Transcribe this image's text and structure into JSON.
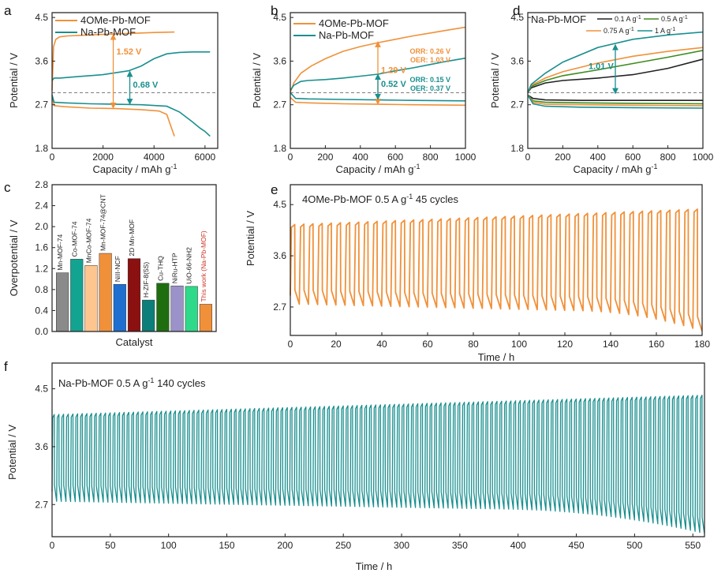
{
  "colors": {
    "orange": "#f0913a",
    "teal": "#1a8f8f",
    "black": "#222222",
    "green": "#3d8b1f",
    "light_orange": "#ffc58f",
    "red": "#cc3322"
  },
  "chart_data": [
    {
      "panel": "a",
      "type": "line",
      "xlabel": "Capacity / mAh g-1",
      "ylabel": "Potential / V",
      "xlim": [
        0,
        6500
      ],
      "ylim": [
        1.8,
        4.6
      ],
      "xticks": [
        0,
        2000,
        4000,
        6000
      ],
      "yticks": [
        1.8,
        2.7,
        3.6,
        4.5
      ],
      "ref_line": 2.95,
      "legend": [
        "4OMe-Pb-MOF",
        "Na-Pb-MOF"
      ],
      "series": [
        {
          "name": "4OMe-Pb-MOF charge",
          "color": "orange",
          "x": [
            0,
            60,
            150,
            300,
            600,
            1000,
            2000,
            3000,
            4000,
            4800
          ],
          "y": [
            3.0,
            3.9,
            4.05,
            4.1,
            4.12,
            4.13,
            4.15,
            4.17,
            4.19,
            4.2
          ]
        },
        {
          "name": "4OMe-Pb-MOF discharge",
          "color": "orange",
          "x": [
            0,
            80,
            500,
            1500,
            2500,
            3500,
            4200,
            4500,
            4700,
            4800
          ],
          "y": [
            2.9,
            2.68,
            2.66,
            2.63,
            2.62,
            2.6,
            2.57,
            2.5,
            2.2,
            2.05
          ]
        },
        {
          "name": "Na-Pb-MOF charge",
          "color": "teal",
          "x": [
            0,
            80,
            300,
            1000,
            2000,
            3000,
            3500,
            4000,
            4500,
            5000,
            5500,
            6200
          ],
          "y": [
            3.2,
            3.25,
            3.25,
            3.28,
            3.32,
            3.4,
            3.5,
            3.65,
            3.75,
            3.78,
            3.79,
            3.79
          ]
        },
        {
          "name": "Na-Pb-MOF discharge",
          "color": "teal",
          "x": [
            0,
            80,
            500,
            1500,
            2500,
            3500,
            4500,
            5000,
            5500,
            5800,
            6000,
            6200
          ],
          "y": [
            2.9,
            2.75,
            2.74,
            2.72,
            2.71,
            2.7,
            2.67,
            2.55,
            2.35,
            2.22,
            2.15,
            2.05
          ]
        }
      ],
      "annotations": [
        {
          "text": "1.52 V",
          "color": "orange",
          "x": 2400,
          "y1": 2.63,
          "y2": 4.15
        },
        {
          "text": "0.68 V",
          "color": "teal",
          "x": 3050,
          "y1": 2.71,
          "y2": 3.39
        }
      ]
    },
    {
      "panel": "b",
      "type": "line",
      "xlabel": "Capacity / mAh g-1",
      "ylabel": "Potential / V",
      "xlim": [
        0,
        1000
      ],
      "ylim": [
        1.8,
        4.6
      ],
      "xticks": [
        0,
        200,
        400,
        600,
        800,
        1000
      ],
      "yticks": [
        1.8,
        2.7,
        3.6,
        4.5
      ],
      "ref_line": 2.95,
      "legend": [
        "4OMe-Pb-MOF",
        "Na-Pb-MOF"
      ],
      "series": [
        {
          "name": "4OMe-Pb-MOF charge",
          "color": "orange",
          "x": [
            0,
            20,
            60,
            120,
            200,
            300,
            400,
            500,
            600,
            700,
            800,
            900,
            1000
          ],
          "y": [
            2.95,
            3.15,
            3.35,
            3.5,
            3.65,
            3.8,
            3.9,
            3.98,
            4.05,
            4.12,
            4.18,
            4.24,
            4.3
          ]
        },
        {
          "name": "4OMe-Pb-MOF discharge",
          "color": "orange",
          "x": [
            0,
            30,
            100,
            300,
            500,
            700,
            1000
          ],
          "y": [
            2.85,
            2.75,
            2.74,
            2.72,
            2.71,
            2.7,
            2.69
          ]
        },
        {
          "name": "Na-Pb-MOF charge",
          "color": "teal",
          "x": [
            0,
            20,
            60,
            100,
            200,
            300,
            400,
            500,
            600,
            700,
            800,
            900,
            1000
          ],
          "y": [
            3.0,
            3.1,
            3.18,
            3.2,
            3.22,
            3.25,
            3.29,
            3.33,
            3.4,
            3.46,
            3.53,
            3.6,
            3.66
          ]
        },
        {
          "name": "Na-Pb-MOF discharge",
          "color": "teal",
          "x": [
            0,
            30,
            100,
            300,
            500,
            700,
            1000
          ],
          "y": [
            2.95,
            2.83,
            2.82,
            2.81,
            2.8,
            2.79,
            2.78
          ]
        }
      ],
      "annotations": [
        {
          "text": "1.29 V",
          "color": "orange",
          "x": 500,
          "y1": 2.71,
          "y2": 4.0
        },
        {
          "text": "0.52 V",
          "color": "teal",
          "x": 500,
          "y1": 2.81,
          "y2": 3.33
        }
      ],
      "notes": [
        {
          "color": "orange",
          "lines": [
            "ORR: 0.26 V",
            "OER: 1.03 V"
          ]
        },
        {
          "color": "teal",
          "lines": [
            "ORR: 0.15 V",
            "OER: 0.37 V"
          ]
        }
      ]
    },
    {
      "panel": "d",
      "type": "line",
      "title": "Na-Pb-MOF",
      "xlabel": "Capacity / mAh g-1",
      "ylabel": "Potential / V",
      "xlim": [
        0,
        1000
      ],
      "ylim": [
        1.8,
        4.6
      ],
      "xticks": [
        0,
        200,
        400,
        600,
        800,
        1000
      ],
      "yticks": [
        1.8,
        2.7,
        3.6,
        4.5
      ],
      "ref_line": 2.95,
      "legend": [
        "0.1 A g-1",
        "0.5 A g-1",
        "0.75 A g-1",
        "1 A g-1"
      ],
      "series": [
        {
          "name": "0.1 A g-1 charge",
          "color": "black",
          "x": [
            0,
            20,
            100,
            200,
            400,
            600,
            800,
            1000
          ],
          "y": [
            2.95,
            3.05,
            3.15,
            3.2,
            3.25,
            3.32,
            3.45,
            3.64
          ]
        },
        {
          "name": "0.1 A g-1 discharge",
          "color": "black",
          "x": [
            0,
            30,
            100,
            300,
            600,
            1000
          ],
          "y": [
            2.9,
            2.83,
            2.8,
            2.79,
            2.79,
            2.79
          ]
        },
        {
          "name": "0.5 A g-1 charge",
          "color": "green",
          "x": [
            0,
            20,
            100,
            200,
            400,
            600,
            800,
            1000
          ],
          "y": [
            2.95,
            3.08,
            3.2,
            3.3,
            3.42,
            3.55,
            3.68,
            3.82
          ]
        },
        {
          "name": "0.5 A g-1 discharge",
          "color": "green",
          "x": [
            0,
            30,
            100,
            300,
            600,
            1000
          ],
          "y": [
            2.9,
            2.78,
            2.75,
            2.74,
            2.73,
            2.72
          ]
        },
        {
          "name": "0.75 A g-1 charge",
          "color": "orange",
          "x": [
            0,
            20,
            100,
            200,
            400,
            600,
            800,
            1000
          ],
          "y": [
            2.95,
            3.1,
            3.25,
            3.38,
            3.56,
            3.7,
            3.8,
            3.88
          ]
        },
        {
          "name": "0.75 A g-1 discharge",
          "color": "orange",
          "x": [
            0,
            30,
            100,
            300,
            600,
            1000
          ],
          "y": [
            2.9,
            2.75,
            2.71,
            2.7,
            2.69,
            2.68
          ]
        },
        {
          "name": "1 A g-1 charge",
          "color": "teal",
          "x": [
            0,
            20,
            100,
            200,
            400,
            600,
            800,
            1000
          ],
          "y": [
            2.95,
            3.12,
            3.35,
            3.58,
            3.88,
            4.05,
            4.14,
            4.2
          ]
        },
        {
          "name": "1 A g-1 discharge",
          "color": "teal",
          "x": [
            0,
            30,
            100,
            300,
            600,
            1000
          ],
          "y": [
            2.9,
            2.72,
            2.67,
            2.65,
            2.64,
            2.63
          ]
        }
      ],
      "annotations": [
        {
          "text": "1.01 V",
          "color": "teal",
          "x": 500,
          "y1": 2.93,
          "y2": 3.94
        }
      ]
    },
    {
      "panel": "c",
      "type": "bar",
      "xlabel": "Catalyst",
      "ylabel": "Overpotential / V",
      "ylim": [
        0,
        2.8
      ],
      "yticks": [
        0.0,
        0.4,
        0.8,
        1.2,
        1.6,
        2.0,
        2.4,
        2.8
      ],
      "categories": [
        "Mn-MOF-74",
        "Co-MOF-74",
        "MnCo-MOF-74",
        "Mn-MOF-74@CNT",
        "NiII-NCF",
        "2D Mn-MOF",
        "H-ZIF-8(5S)",
        "Cu-THQ",
        "NiRu-HTP",
        "UiO-66-NH2",
        "This work (Na-Pb-MOF)"
      ],
      "values": [
        1.12,
        1.38,
        1.26,
        1.49,
        0.9,
        1.39,
        0.6,
        0.92,
        0.87,
        0.86,
        0.52
      ],
      "bar_colors": [
        "#8a8a8a",
        "#13a391",
        "#ffc58f",
        "#f0913a",
        "#1f6fd1",
        "#8b1010",
        "#0d7f7a",
        "#1e6e10",
        "#9a92c8",
        "#2fd98a",
        "#f0913a"
      ]
    },
    {
      "panel": "e",
      "type": "line",
      "annotation_text": "4OMe-Pb-MOF 0.5 A g-1 45 cycles",
      "xlabel": "Time / h",
      "ylabel": "Potential / V",
      "xlim": [
        0,
        180
      ],
      "ylim": [
        2.2,
        4.85
      ],
      "xticks": [
        0,
        20,
        40,
        60,
        80,
        100,
        120,
        140,
        160,
        180
      ],
      "yticks": [
        2.7,
        3.6,
        4.5
      ],
      "cycles": 45,
      "cycle_length_h": 4,
      "charge_V_start": 4.15,
      "charge_V_end": 4.42,
      "discharge_V_start": 2.75,
      "discharge_V_end": 2.28,
      "color": "orange"
    },
    {
      "panel": "f",
      "type": "line",
      "annotation_text": "Na-Pb-MOF 0.5 A g-1 140 cycles",
      "xlabel": "Time / h",
      "ylabel": "Potential / V",
      "xlim": [
        0,
        560
      ],
      "ylim": [
        2.2,
        4.9
      ],
      "xticks": [
        0,
        50,
        100,
        150,
        200,
        250,
        300,
        350,
        400,
        450,
        500,
        550
      ],
      "yticks": [
        2.7,
        3.6,
        4.5
      ],
      "cycles": 140,
      "cycle_length_h": 4,
      "charge_V_start": 4.1,
      "charge_V_end": 4.4,
      "discharge_V_start": 2.75,
      "discharge_V_end": 2.25,
      "color": "teal"
    }
  ]
}
